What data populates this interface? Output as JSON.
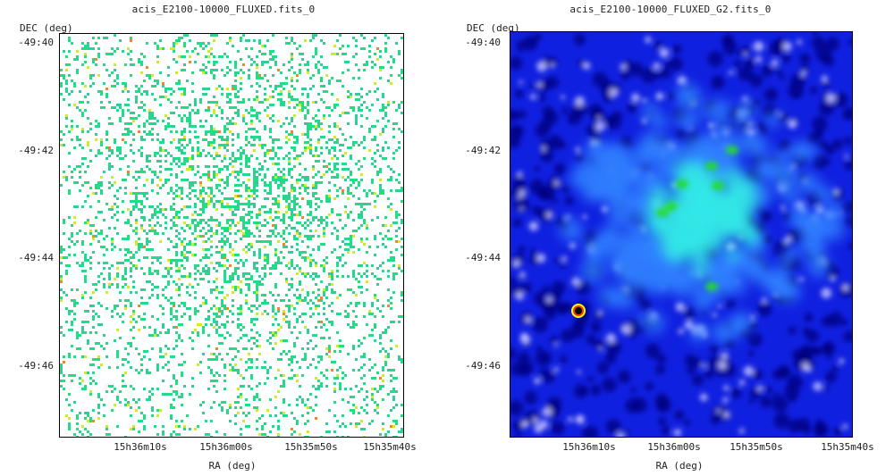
{
  "panels": [
    {
      "title": "acis_E2100-10000_FLUXED.fits_0",
      "y_axis_label": "DEC (deg)",
      "x_axis_label": "RA (deg)",
      "y_ticks": [
        "-49:40",
        "-49:42",
        "-49:44",
        "-49:46"
      ],
      "x_ticks": [
        "15h36m10s",
        "15h36m00s",
        "15h35m50s",
        "15h35m40s"
      ],
      "image_kind": "binned-counts",
      "colors": {
        "background": "#ffffff",
        "dominant": "#22dd88",
        "secondary": "#ccee22",
        "accent": "#ee8822"
      }
    },
    {
      "title": "acis_E2100-10000_FLUXED_G2.fits_0",
      "y_axis_label": "DEC (deg)",
      "x_axis_label": "RA (deg)",
      "y_ticks": [
        "-49:40",
        "-49:42",
        "-49:44",
        "-49:46"
      ],
      "x_ticks": [
        "15h36m10s",
        "15h36m00s",
        "15h35m50s",
        "15h35m40s"
      ],
      "image_kind": "gaussian-smoothed",
      "colors": {
        "background": "#1020e0",
        "dark": "#000080",
        "mid": "#2f7fff",
        "bright": "#33e6e6",
        "peak": "#22dd22",
        "source": "#ffff00"
      }
    }
  ]
}
